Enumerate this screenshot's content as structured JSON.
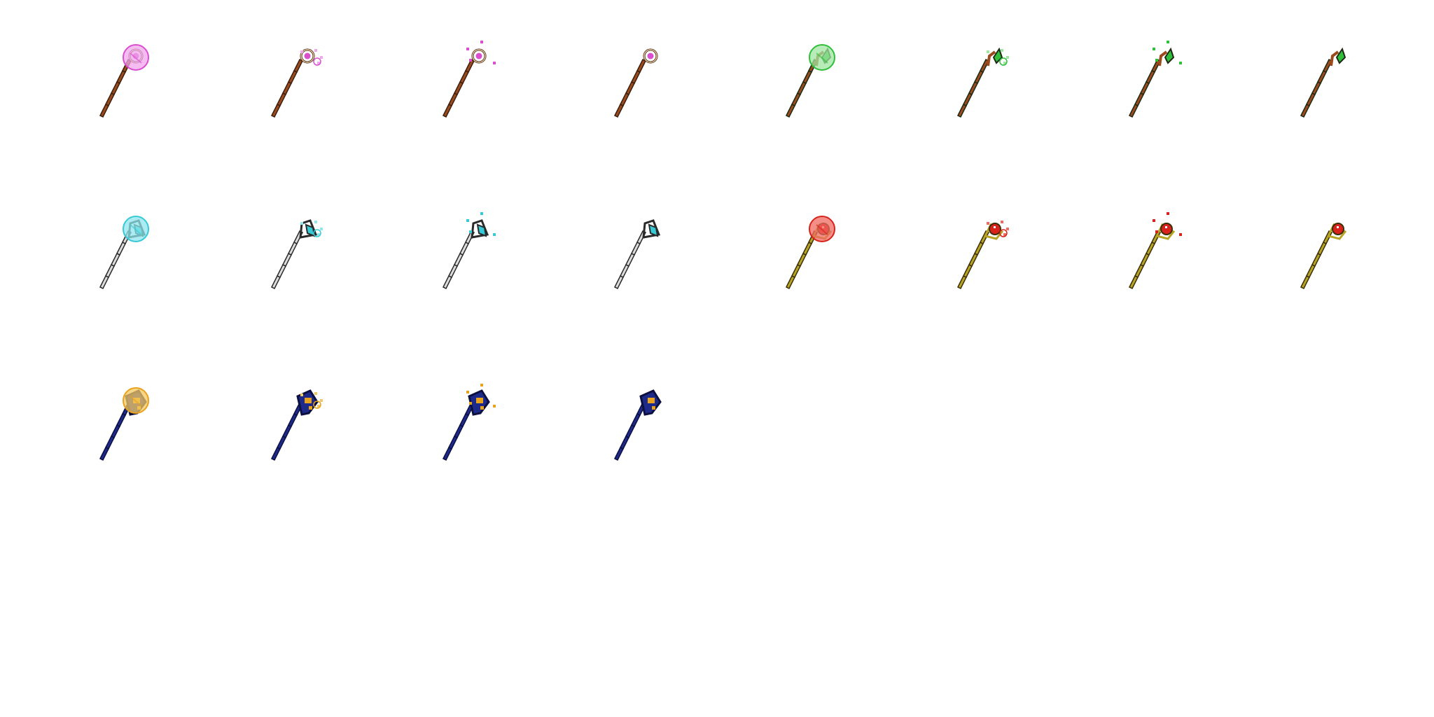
{
  "sheet": {
    "background": "#ffffff",
    "rows": [
      {
        "name": "row-1",
        "sprites": [
          {
            "kind": "pink-staff",
            "frame": "glow",
            "colors": {
              "gem": "#d94fd0",
              "glow": "#f0a6ec",
              "shaft": "#9a4a1c",
              "outline": "#3a2010",
              "accent": "#e7c9a0"
            }
          },
          {
            "kind": "pink-staff",
            "frame": "sparkle-1",
            "colors": {
              "gem": "#d94fd0",
              "glow": "#f0a6ec",
              "shaft": "#9a4a1c",
              "outline": "#3a2010",
              "accent": "#e7c9a0"
            }
          },
          {
            "kind": "pink-staff",
            "frame": "sparkle-2",
            "colors": {
              "gem": "#d94fd0",
              "glow": "#f0a6ec",
              "shaft": "#9a4a1c",
              "outline": "#3a2010",
              "accent": "#e7c9a0"
            }
          },
          {
            "kind": "pink-staff",
            "frame": "idle",
            "colors": {
              "gem": "#d94fd0",
              "glow": "#f0a6ec",
              "shaft": "#9a4a1c",
              "outline": "#3a2010",
              "accent": "#e7c9a0"
            }
          },
          {
            "kind": "green-staff",
            "frame": "glow",
            "colors": {
              "gem": "#2fbf3a",
              "glow": "#9fe6a0",
              "shaft": "#9a4a1c",
              "outline": "#1d2a14",
              "accent": "#c8c8c8"
            }
          },
          {
            "kind": "green-staff",
            "frame": "sparkle-1",
            "colors": {
              "gem": "#2fbf3a",
              "glow": "#9fe6a0",
              "shaft": "#9a4a1c",
              "outline": "#1d2a14",
              "accent": "#c8c8c8"
            }
          },
          {
            "kind": "green-staff",
            "frame": "sparkle-2",
            "colors": {
              "gem": "#2fbf3a",
              "glow": "#9fe6a0",
              "shaft": "#9a4a1c",
              "outline": "#1d2a14",
              "accent": "#c8c8c8"
            }
          },
          {
            "kind": "green-staff",
            "frame": "idle",
            "colors": {
              "gem": "#2fbf3a",
              "glow": "#9fe6a0",
              "shaft": "#9a4a1c",
              "outline": "#1d2a14",
              "accent": "#c8c8c8"
            }
          }
        ]
      },
      {
        "name": "row-2",
        "sprites": [
          {
            "kind": "ice-staff",
            "frame": "glow",
            "colors": {
              "gem": "#36c9d6",
              "glow": "#8fe6ee",
              "shaft": "#9a9a9a",
              "outline": "#2a2a2a",
              "accent": "#dcdcdc"
            }
          },
          {
            "kind": "ice-staff",
            "frame": "sparkle-1",
            "colors": {
              "gem": "#36c9d6",
              "glow": "#8fe6ee",
              "shaft": "#9a9a9a",
              "outline": "#2a2a2a",
              "accent": "#dcdcdc"
            }
          },
          {
            "kind": "ice-staff",
            "frame": "sparkle-2",
            "colors": {
              "gem": "#36c9d6",
              "glow": "#8fe6ee",
              "shaft": "#9a9a9a",
              "outline": "#2a2a2a",
              "accent": "#dcdcdc"
            }
          },
          {
            "kind": "ice-staff",
            "frame": "idle",
            "colors": {
              "gem": "#36c9d6",
              "glow": "#8fe6ee",
              "shaft": "#9a9a9a",
              "outline": "#2a2a2a",
              "accent": "#dcdcdc"
            }
          },
          {
            "kind": "ruby-staff",
            "frame": "glow",
            "colors": {
              "gem": "#d9221c",
              "glow": "#f06a60",
              "shaft": "#b8a424",
              "outline": "#3a2e08",
              "accent": "#e8d868"
            }
          },
          {
            "kind": "ruby-staff",
            "frame": "sparkle-1",
            "colors": {
              "gem": "#d9221c",
              "glow": "#f06a60",
              "shaft": "#b8a424",
              "outline": "#3a2e08",
              "accent": "#e8d868"
            }
          },
          {
            "kind": "ruby-staff",
            "frame": "sparkle-2",
            "colors": {
              "gem": "#d9221c",
              "glow": "#f06a60",
              "shaft": "#b8a424",
              "outline": "#3a2e08",
              "accent": "#e8d868"
            }
          },
          {
            "kind": "ruby-staff",
            "frame": "idle",
            "colors": {
              "gem": "#d9221c",
              "glow": "#f06a60",
              "shaft": "#b8a424",
              "outline": "#3a2e08",
              "accent": "#e8d868"
            }
          }
        ]
      },
      {
        "name": "row-3",
        "sprites": [
          {
            "kind": "royal-scepter",
            "frame": "glow",
            "colors": {
              "gem": "#e8a21c",
              "glow": "#f4c860",
              "shaft": "#1e2a8a",
              "outline": "#0c1040",
              "accent": "#3b4ac0"
            }
          },
          {
            "kind": "royal-scepter",
            "frame": "sparkle-1",
            "colors": {
              "gem": "#e8a21c",
              "glow": "#f4c860",
              "shaft": "#1e2a8a",
              "outline": "#0c1040",
              "accent": "#3b4ac0"
            }
          },
          {
            "kind": "royal-scepter",
            "frame": "sparkle-2",
            "colors": {
              "gem": "#e8a21c",
              "glow": "#f4c860",
              "shaft": "#1e2a8a",
              "outline": "#0c1040",
              "accent": "#3b4ac0"
            }
          },
          {
            "kind": "royal-scepter",
            "frame": "idle",
            "colors": {
              "gem": "#e8a21c",
              "glow": "#f4c860",
              "shaft": "#1e2a8a",
              "outline": "#0c1040",
              "accent": "#3b4ac0"
            }
          }
        ]
      }
    ]
  }
}
